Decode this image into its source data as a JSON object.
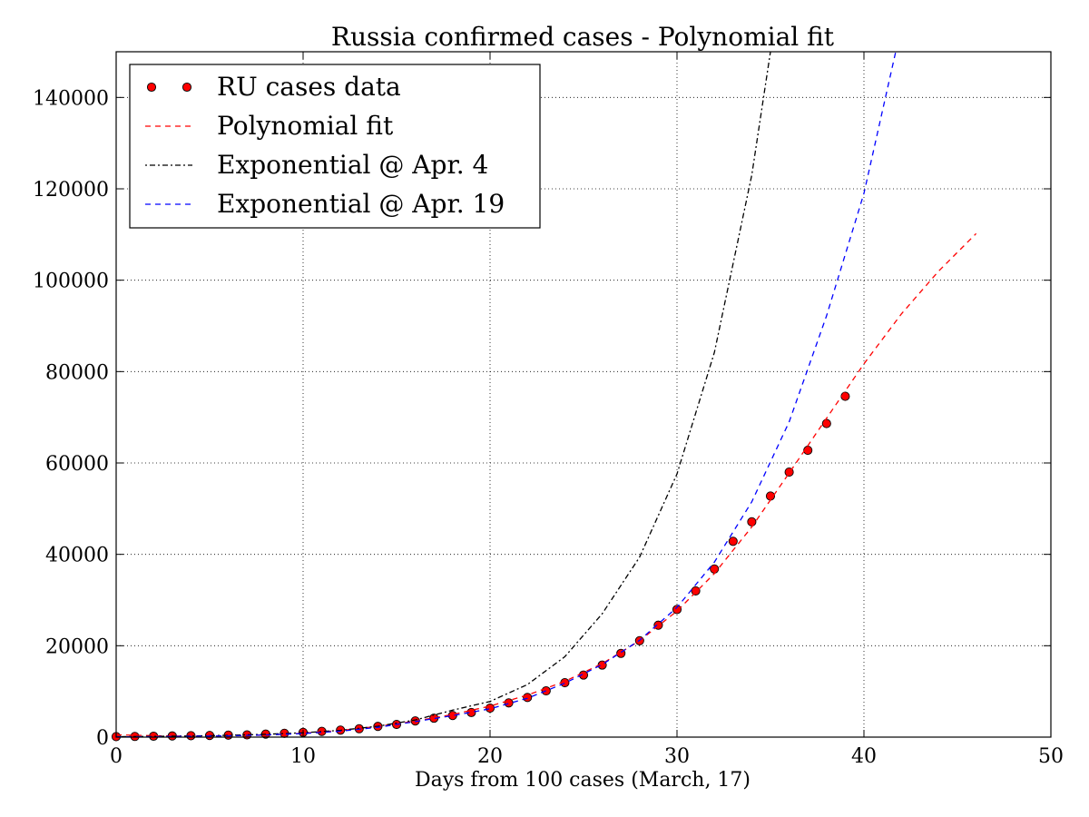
{
  "chart_data": {
    "type": "scatter",
    "title": "Russia confirmed cases - Polynomial fit",
    "xlabel": "Days from 100 cases (March, 17)",
    "ylabel": "",
    "xlim": [
      0,
      50
    ],
    "ylim": [
      0,
      150000
    ],
    "x_ticks": [
      0,
      10,
      20,
      30,
      40,
      50
    ],
    "y_ticks": [
      0,
      20000,
      40000,
      60000,
      80000,
      100000,
      120000,
      140000
    ],
    "x_tick_labels": [
      "0",
      "10",
      "20",
      "30",
      "40",
      "50"
    ],
    "y_tick_labels": [
      "0",
      "20000",
      "40000",
      "60000",
      "80000",
      "100000",
      "120000",
      "140000"
    ],
    "grid": true,
    "legend_position": "top-left",
    "series": [
      {
        "name": "RU cases data",
        "kind": "markers",
        "color": "#ff0000",
        "x": [
          0,
          1,
          2,
          3,
          4,
          5,
          6,
          7,
          8,
          9,
          10,
          11,
          12,
          13,
          14,
          15,
          16,
          17,
          18,
          19,
          20,
          21,
          22,
          23,
          24,
          25,
          26,
          27,
          28,
          29,
          30,
          31,
          32,
          33,
          34,
          35,
          36,
          37,
          38,
          39
        ],
        "y": [
          114,
          147,
          199,
          253,
          306,
          367,
          438,
          495,
          658,
          840,
          1036,
          1264,
          1534,
          1836,
          2337,
          2777,
          3548,
          4149,
          4731,
          5389,
          6343,
          7497,
          8672,
          10131,
          11917,
          13584,
          15770,
          18328,
          21102,
          24490,
          27938,
          32008,
          36793,
          42853,
          47121,
          52763,
          57999,
          62773,
          68622,
          74588
        ]
      },
      {
        "name": "Polynomial fit",
        "kind": "dashed",
        "color": "#ff0000",
        "x": [
          0,
          2,
          4,
          6,
          8,
          10,
          12,
          14,
          16,
          18,
          20,
          22,
          24,
          26,
          28,
          30,
          32,
          34,
          36,
          38,
          40,
          42,
          44,
          46
        ],
        "y": [
          500,
          300,
          200,
          250,
          450,
          850,
          1450,
          2350,
          3500,
          4950,
          6800,
          9200,
          12200,
          16100,
          21100,
          27600,
          35800,
          46000,
          57800,
          69800,
          81700,
          92600,
          102000,
          110200
        ]
      },
      {
        "name": "Exponential @ Apr. 4",
        "kind": "dashdot",
        "color": "#000000",
        "x": [
          0,
          2,
          4,
          6,
          8,
          10,
          12,
          14,
          16,
          18,
          20,
          22,
          24,
          26,
          28,
          30,
          32,
          34,
          35
        ],
        "y": [
          100,
          160,
          250,
          390,
          610,
          960,
          1500,
          2380,
          3750,
          5900,
          7800,
          11500,
          17600,
          27000,
          39400,
          57600,
          84200,
          123000,
          150000
        ]
      },
      {
        "name": "Exponential @ Apr. 19",
        "kind": "dashed",
        "color": "#0000ff",
        "x": [
          0,
          2,
          4,
          6,
          8,
          10,
          12,
          14,
          16,
          18,
          20,
          22,
          24,
          26,
          28,
          30,
          32,
          34,
          36,
          38,
          40,
          41.7
        ],
        "y": [
          60,
          100,
          170,
          280,
          470,
          780,
          1300,
          2150,
          3400,
          4700,
          6200,
          8500,
          11800,
          15900,
          21200,
          28400,
          38300,
          51500,
          69000,
          92200,
          119000,
          150000
        ]
      }
    ]
  }
}
